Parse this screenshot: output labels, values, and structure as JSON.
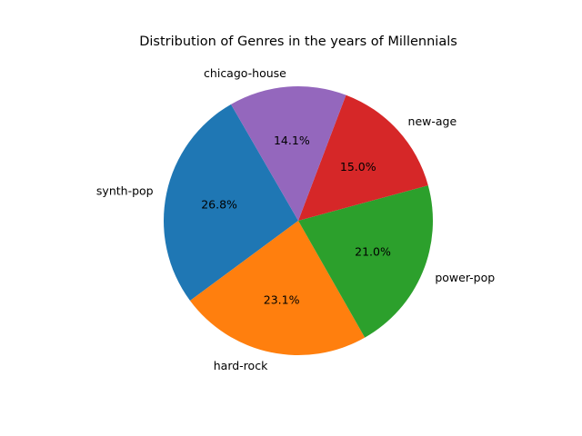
{
  "chart_data": {
    "type": "pie",
    "title": "Distribution of Genres in the years of Millennials",
    "slices": [
      {
        "label": "synth-pop",
        "value": 26.8,
        "pct_label": "26.8%",
        "color": "#1f77b4"
      },
      {
        "label": "hard-rock",
        "value": 23.1,
        "pct_label": "23.1%",
        "color": "#ff7f0e"
      },
      {
        "label": "power-pop",
        "value": 21.0,
        "pct_label": "21.0%",
        "color": "#2ca02c"
      },
      {
        "label": "new-age",
        "value": 15.0,
        "pct_label": "15.0%",
        "color": "#d62728"
      },
      {
        "label": "chicago-house",
        "value": 14.1,
        "pct_label": "14.1%",
        "color": "#9467bd"
      }
    ],
    "start_angle_deg": 120,
    "direction": "counterclockwise",
    "legend": "none"
  }
}
